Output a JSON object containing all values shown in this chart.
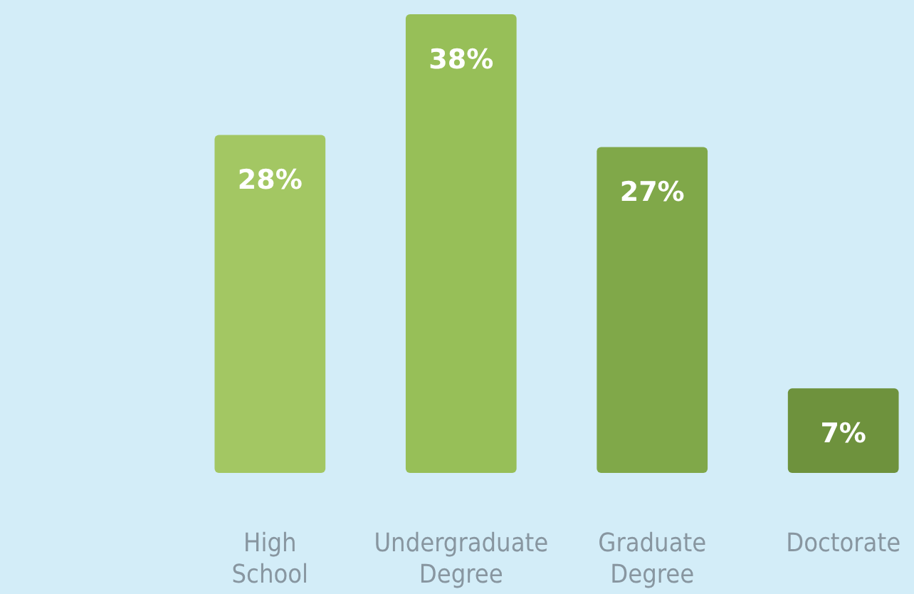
{
  "chart_data": {
    "type": "bar",
    "categories": [
      "High School",
      "Undergraduate Degree",
      "Graduate Degree",
      "Doctorate"
    ],
    "values": [
      28,
      38,
      27,
      7
    ],
    "colors": [
      "#a3c763",
      "#97bf58",
      "#80a849",
      "#6e923d"
    ],
    "value_labels": [
      "28%",
      "38%",
      "27%",
      "7%"
    ]
  }
}
